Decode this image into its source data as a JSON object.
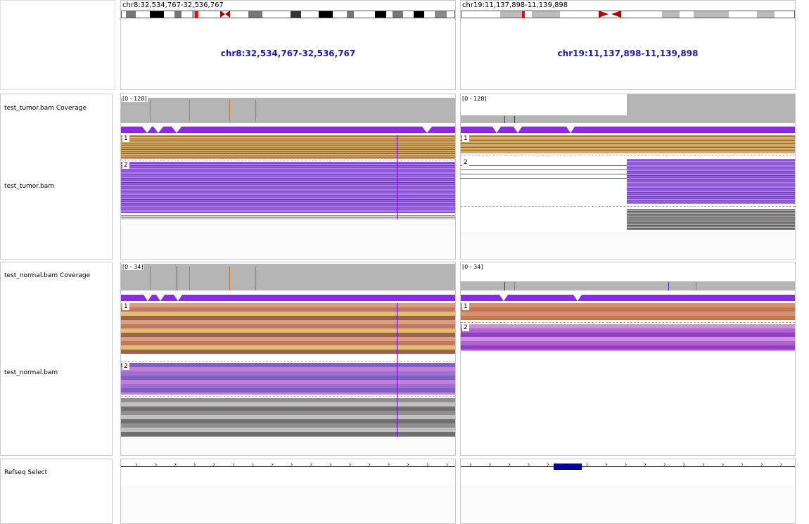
{
  "loci": [
    {
      "small": "chr8:32,534,767-32,536,767",
      "big": "chr8:32,534,767-32,536,767"
    },
    {
      "small": "chr19:11,137,898-11,139,898",
      "big": "chr19:11,137,898-11,139,898"
    }
  ],
  "tracks": {
    "tumor_coverage": "test_tumor.bam Coverage",
    "tumor_bam": "test_tumor.bam",
    "normal_coverage": "test_normal.bam Coverage",
    "normal_bam": "test_normal.bam",
    "refseq": "Refseq Select"
  },
  "scales": {
    "tumor": "[0 - 128]",
    "normal": "[0 - 34]"
  },
  "groups": {
    "one": "1",
    "two": "2"
  },
  "colors": {
    "locus_text": "#1a1acc",
    "coverage": "#b4b4b4",
    "junction_band": "#8a2be2",
    "gene": "#0000aa"
  },
  "icons": [
    "centromere-icon",
    "current-region-marker-icon",
    "strand-arrow-icon"
  ]
}
